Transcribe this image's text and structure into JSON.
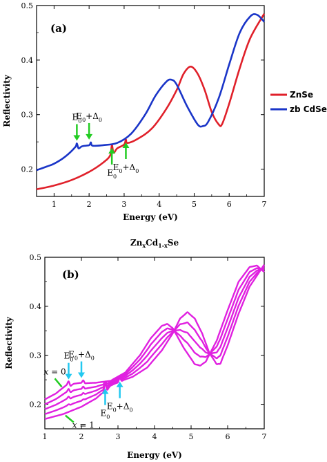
{
  "chart_data": [
    {
      "type": "line",
      "panel_label": "(a)",
      "xlabel": "Energy (eV)",
      "ylabel": "Reflectivity",
      "xlim": [
        0.5,
        7
      ],
      "ylim": [
        0.15,
        0.5
      ],
      "x_ticks": [
        1,
        2,
        3,
        4,
        5,
        6,
        7
      ],
      "y_ticks": [
        0.2,
        0.3,
        0.4,
        0.5
      ],
      "grid": false,
      "legend_position": "right",
      "series": [
        {
          "name": "ZnSe",
          "color": "#e0202a",
          "x": [
            0.5,
            1.0,
            1.5,
            2.0,
            2.4,
            2.6,
            2.65,
            2.7,
            2.8,
            3.0,
            3.05,
            3.1,
            3.4,
            3.8,
            4.2,
            4.5,
            4.7,
            4.9,
            5.1,
            5.3,
            5.5,
            5.7,
            5.8,
            6.0,
            6.3,
            6.6,
            7.0
          ],
          "y": [
            0.163,
            0.17,
            0.18,
            0.195,
            0.212,
            0.225,
            0.244,
            0.23,
            0.238,
            0.245,
            0.254,
            0.248,
            0.256,
            0.275,
            0.31,
            0.345,
            0.375,
            0.388,
            0.375,
            0.345,
            0.305,
            0.282,
            0.283,
            0.32,
            0.385,
            0.44,
            0.485
          ]
        },
        {
          "name": "zb CdSe",
          "color": "#1a35c8",
          "x": [
            0.5,
            0.8,
            1.0,
            1.3,
            1.6,
            1.65,
            1.7,
            1.8,
            2.0,
            2.05,
            2.1,
            2.4,
            2.8,
            3.2,
            3.6,
            3.9,
            4.2,
            4.35,
            4.5,
            4.8,
            5.1,
            5.25,
            5.4,
            5.7,
            6.0,
            6.3,
            6.6,
            6.8,
            7.0
          ],
          "y": [
            0.198,
            0.205,
            0.21,
            0.222,
            0.24,
            0.247,
            0.238,
            0.242,
            0.244,
            0.249,
            0.243,
            0.244,
            0.248,
            0.265,
            0.3,
            0.335,
            0.36,
            0.364,
            0.355,
            0.315,
            0.282,
            0.279,
            0.287,
            0.33,
            0.392,
            0.45,
            0.48,
            0.483,
            0.47
          ]
        }
      ],
      "annotations": [
        {
          "base": "E",
          "sub": "0",
          "suffix": "",
          "arrow_color": "#22cc22",
          "x": 1.65,
          "y": 0.247,
          "side": "above"
        },
        {
          "base": "E",
          "sub": "0",
          "suffix": "+Δ",
          "sub2": "0",
          "arrow_color": "#22cc22",
          "x": 2.0,
          "y": 0.249,
          "side": "above"
        },
        {
          "base": "E",
          "sub": "0",
          "suffix": "",
          "arrow_color": "#22cc22",
          "x": 2.65,
          "y": 0.244,
          "side": "below"
        },
        {
          "base": "E",
          "sub": "0",
          "suffix": "+Δ",
          "sub2": "0",
          "arrow_color": "#22cc22",
          "x": 3.05,
          "y": 0.254,
          "side": "below"
        }
      ]
    },
    {
      "type": "line",
      "panel_label": "(b)",
      "title_parts": {
        "a": "Zn",
        "b": "x",
        "c": "Cd",
        "d": "1-x",
        "e": "Se"
      },
      "xlabel": "Energy (eV)",
      "ylabel": "Reflectivity",
      "xlim": [
        1,
        7
      ],
      "ylim": [
        0.15,
        0.5
      ],
      "x_ticks": [
        1,
        2,
        3,
        4,
        5,
        6,
        7
      ],
      "y_ticks": [
        0.2,
        0.3,
        0.4,
        0.5
      ],
      "grid": false,
      "line_color": "#e020e0",
      "series_values_interpolated_between_x0_and_x1": true,
      "series": [
        {
          "label": "x = 0",
          "interp": 0.0
        },
        {
          "label": "",
          "interp": 0.25
        },
        {
          "label": "",
          "interp": 0.5
        },
        {
          "label": "",
          "interp": 0.75
        },
        {
          "label": "x = 1",
          "interp": 1.0
        }
      ],
      "x_labels": [
        {
          "text_a": "x",
          "text_b": " = 0",
          "arrow_color": "#22cc22",
          "x": 1.5,
          "y": 0.23
        },
        {
          "text_a": "x",
          "text_b": " = 1",
          "arrow_color": "#22cc22",
          "x": 1.6,
          "y": 0.183
        }
      ],
      "annotations": [
        {
          "base": "E",
          "sub": "0",
          "suffix": "",
          "arrow_color": "#22c8f0",
          "x": 1.65,
          "y": 0.245,
          "side": "above"
        },
        {
          "base": "E",
          "sub": "0",
          "suffix": "+Δ",
          "sub2": "0",
          "arrow_color": "#22c8f0",
          "x": 2.0,
          "y": 0.248,
          "side": "above"
        },
        {
          "base": "E",
          "sub": "0",
          "suffix": "",
          "arrow_color": "#22c8f0",
          "x": 2.65,
          "y": 0.238,
          "side": "below"
        },
        {
          "base": "E",
          "sub": "0",
          "suffix": "+Δ",
          "sub2": "0",
          "arrow_color": "#22c8f0",
          "x": 3.05,
          "y": 0.252,
          "side": "below"
        }
      ]
    }
  ]
}
